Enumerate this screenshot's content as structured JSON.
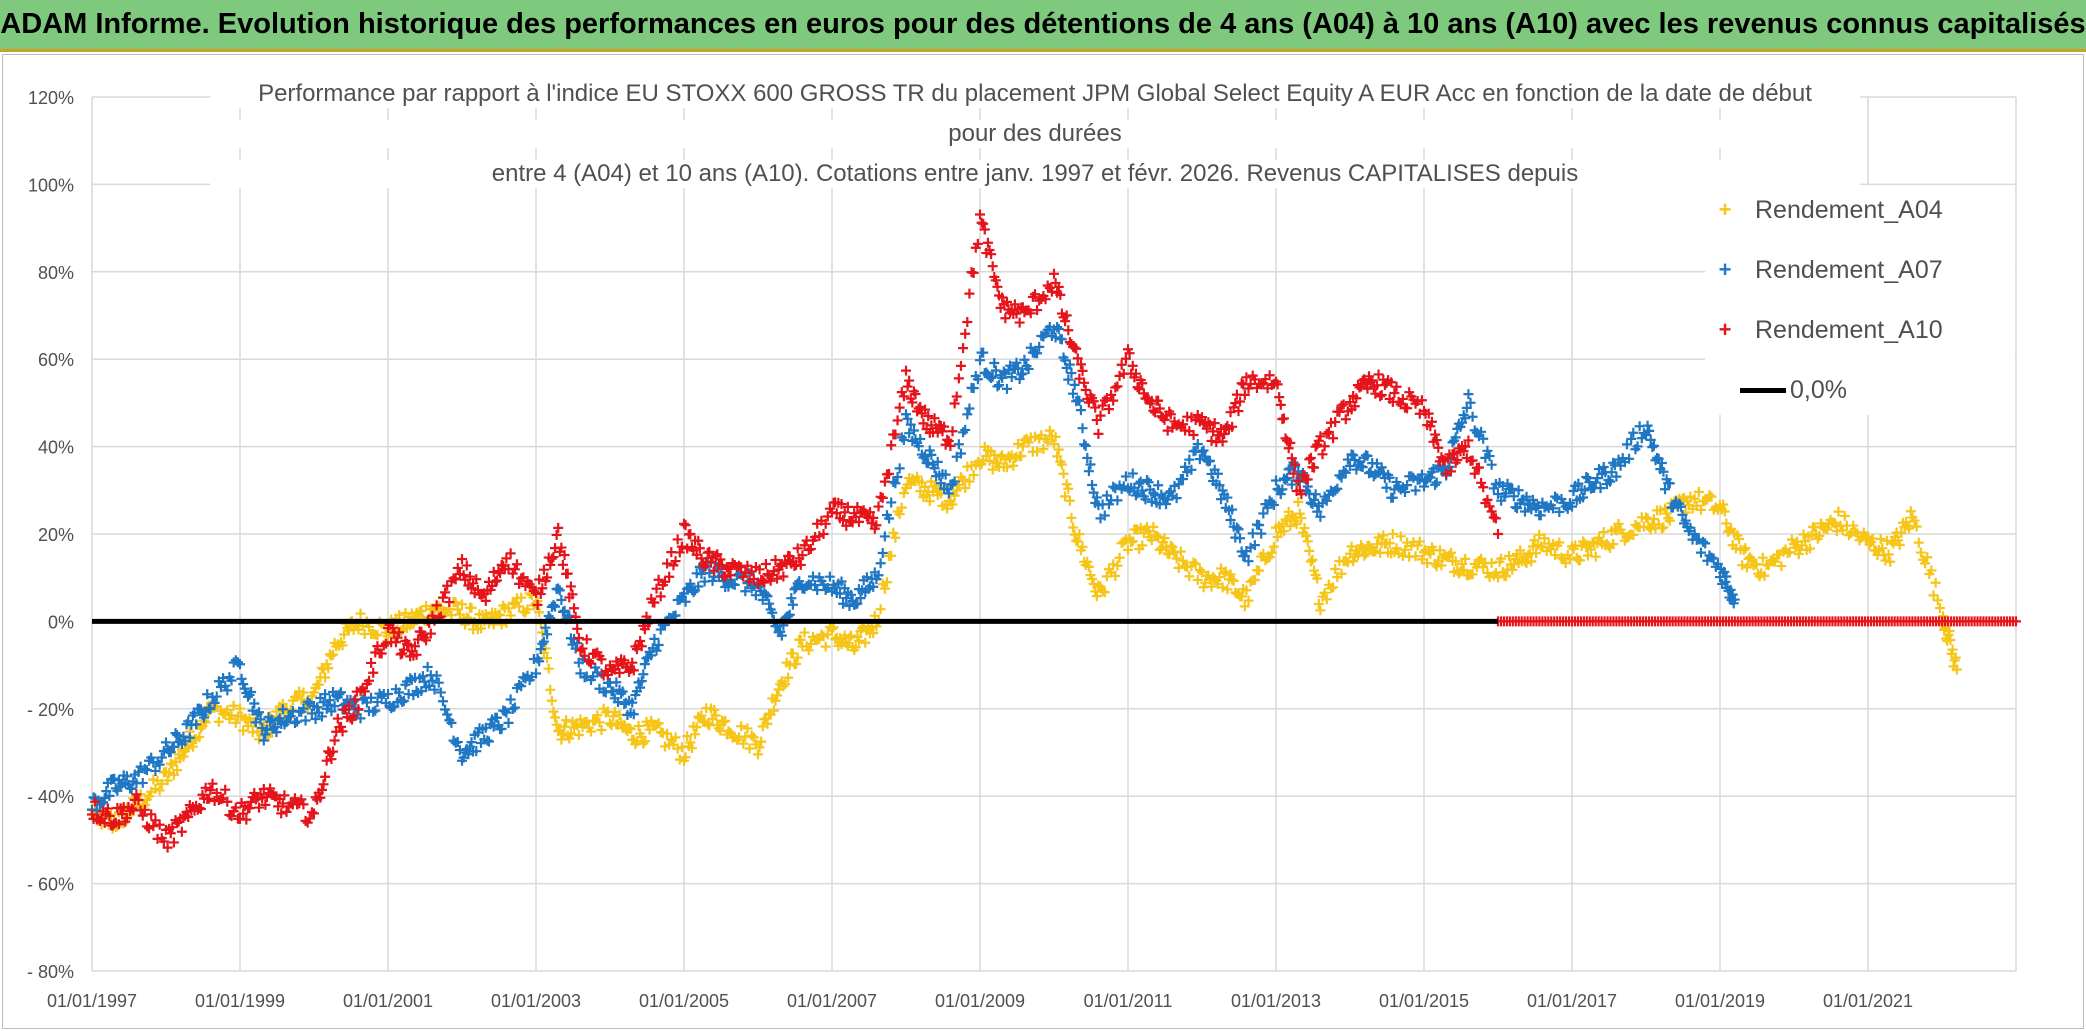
{
  "banner": {
    "title": "ADAM Informe. Evolution historique des performances en euros pour des détentions de 4 ans (A04) à 10 ans (A10) avec les revenus connus capitalisés"
  },
  "chart_data": {
    "type": "scatter",
    "title_lines": [
      "Performance  par rapport à l'indice EU STOXX 600 GROSS TR  du placement JPM Global Select Equity A EUR Acc en fonction de la date de début",
      "pour des durées",
      "entre 4 (A04) et 10 ans (A10). Cotations entre janv. 1997 et févr. 2026. Revenus CAPITALISES depuis"
    ],
    "xlabel": "",
    "ylabel": "",
    "xlim": [
      1997.0,
      2023.0
    ],
    "ylim": [
      -80,
      120
    ],
    "y_ticks": [
      120,
      100,
      80,
      60,
      40,
      20,
      0,
      -20,
      -40,
      -60,
      -80
    ],
    "y_tick_labels": [
      "120%",
      "100%",
      "80%",
      "60%",
      "40%",
      "20%",
      "0%",
      "- 20%",
      "- 40%",
      "- 60%",
      "- 80%"
    ],
    "x_ticks": [
      1997,
      1999,
      2001,
      2003,
      2005,
      2007,
      2009,
      2011,
      2013,
      2015,
      2017,
      2019,
      2021
    ],
    "x_tick_labels": [
      "01/01/1997",
      "01/01/1999",
      "01/01/2001",
      "01/01/2003",
      "01/01/2005",
      "01/01/2007",
      "01/01/2009",
      "01/01/2011",
      "01/01/2013",
      "01/01/2015",
      "01/01/2017",
      "01/01/2019",
      "01/01/2021"
    ],
    "grid": true,
    "legend_position": "right",
    "marker": "+",
    "series": [
      {
        "name": "Rendement_A04",
        "color": "#f5c518",
        "x": [
          1997.0,
          1997.3,
          1997.6,
          1998.0,
          1998.3,
          1998.6,
          1999.0,
          1999.3,
          1999.6,
          2000.0,
          2000.3,
          2000.6,
          2001.0,
          2001.3,
          2001.6,
          2002.0,
          2002.3,
          2002.6,
          2003.0,
          2003.3,
          2003.6,
          2004.0,
          2004.3,
          2004.6,
          2005.0,
          2005.3,
          2005.6,
          2006.0,
          2006.3,
          2006.6,
          2007.0,
          2007.3,
          2007.6,
          2008.0,
          2008.3,
          2008.6,
          2009.0,
          2009.3,
          2009.6,
          2010.0,
          2010.3,
          2010.6,
          2011.0,
          2011.3,
          2011.6,
          2012.0,
          2012.3,
          2012.6,
          2013.0,
          2013.3,
          2013.6,
          2014.0,
          2014.3,
          2014.6,
          2015.0,
          2015.3,
          2015.6,
          2016.0,
          2016.3,
          2016.6,
          2017.0,
          2017.3,
          2017.6,
          2018.0,
          2018.3,
          2018.6,
          2019.0,
          2019.3,
          2019.6,
          2020.0,
          2020.3,
          2020.6,
          2021.0,
          2021.3,
          2021.6,
          2022.0,
          2022.2
        ],
        "values": [
          -44,
          -46,
          -42,
          -36,
          -28,
          -20,
          -22,
          -26,
          -20,
          -17,
          -5,
          0,
          -2,
          0,
          3,
          2,
          -1,
          2,
          5,
          -25,
          -24,
          -22,
          -26,
          -25,
          -30,
          -21,
          -24,
          -28,
          -14,
          -5,
          -3,
          -6,
          0,
          32,
          30,
          28,
          38,
          36,
          40,
          42,
          20,
          6,
          18,
          20,
          15,
          10,
          10,
          5,
          20,
          25,
          5,
          16,
          17,
          18,
          16,
          14,
          13,
          12,
          14,
          18,
          15,
          17,
          20,
          23,
          24,
          28,
          26,
          15,
          12,
          17,
          20,
          23,
          18,
          16,
          24,
          2,
          -11
        ]
      },
      {
        "name": "Rendement_A07",
        "color": "#1f77c4",
        "x": [
          1997.0,
          1997.3,
          1997.6,
          1998.0,
          1998.3,
          1998.6,
          1999.0,
          1999.3,
          1999.6,
          2000.0,
          2000.3,
          2000.6,
          2001.0,
          2001.3,
          2001.6,
          2002.0,
          2002.3,
          2002.6,
          2003.0,
          2003.3,
          2003.6,
          2004.0,
          2004.3,
          2004.6,
          2005.0,
          2005.3,
          2005.6,
          2006.0,
          2006.3,
          2006.6,
          2007.0,
          2007.3,
          2007.6,
          2008.0,
          2008.3,
          2008.6,
          2009.0,
          2009.3,
          2009.6,
          2010.0,
          2010.3,
          2010.6,
          2011.0,
          2011.3,
          2011.6,
          2012.0,
          2012.3,
          2012.6,
          2013.0,
          2013.3,
          2013.6,
          2014.0,
          2014.3,
          2014.6,
          2015.0,
          2015.3,
          2015.6,
          2016.0,
          2016.3,
          2016.6,
          2017.0,
          2017.3,
          2017.6,
          2018.0,
          2018.3,
          2018.6,
          2019.0,
          2019.2
        ],
        "values": [
          -42,
          -38,
          -36,
          -30,
          -25,
          -18,
          -10,
          -25,
          -22,
          -20,
          -18,
          -20,
          -18,
          -15,
          -12,
          -30,
          -26,
          -22,
          -10,
          8,
          -10,
          -15,
          -20,
          -5,
          5,
          12,
          10,
          8,
          -3,
          10,
          8,
          5,
          10,
          45,
          38,
          30,
          60,
          55,
          58,
          68,
          52,
          25,
          32,
          30,
          28,
          40,
          28,
          15,
          30,
          35,
          25,
          38,
          35,
          30,
          32,
          35,
          50,
          30,
          28,
          26,
          28,
          32,
          35,
          45,
          30,
          20,
          12,
          5
        ]
      },
      {
        "name": "Rendement_A10",
        "color": "#e5141b",
        "x": [
          1997.0,
          1997.3,
          1997.6,
          1998.0,
          1998.3,
          1998.6,
          1999.0,
          1999.3,
          1999.6,
          2000.0,
          2000.3,
          2000.6,
          2001.0,
          2001.3,
          2001.6,
          2002.0,
          2002.3,
          2002.6,
          2003.0,
          2003.3,
          2003.6,
          2004.0,
          2004.3,
          2004.6,
          2005.0,
          2005.3,
          2005.6,
          2006.0,
          2006.3,
          2006.6,
          2007.0,
          2007.3,
          2007.6,
          2008.0,
          2008.3,
          2008.6,
          2009.0,
          2009.3,
          2009.6,
          2010.0,
          2010.3,
          2010.6,
          2011.0,
          2011.3,
          2011.6,
          2012.0,
          2012.3,
          2012.6,
          2013.0,
          2013.3,
          2013.6,
          2014.0,
          2014.3,
          2014.6,
          2015.0,
          2015.3,
          2015.6,
          2016.0
        ],
        "values": [
          -43,
          -45,
          -42,
          -50,
          -45,
          -38,
          -44,
          -40,
          -42,
          -44,
          -25,
          -18,
          -2,
          -8,
          0,
          12,
          5,
          15,
          5,
          20,
          -5,
          -12,
          -10,
          5,
          20,
          14,
          12,
          10,
          12,
          15,
          25,
          24,
          22,
          55,
          45,
          42,
          92,
          72,
          70,
          78,
          60,
          45,
          60,
          50,
          45,
          45,
          42,
          55,
          55,
          30,
          40,
          50,
          55,
          52,
          48,
          35,
          40,
          20
        ]
      }
    ],
    "zero_tail_start": 2016.0,
    "zero_tail_end": 2023.0,
    "reference_line": {
      "name": "0,0%",
      "value": 0,
      "color": "#000000"
    }
  }
}
